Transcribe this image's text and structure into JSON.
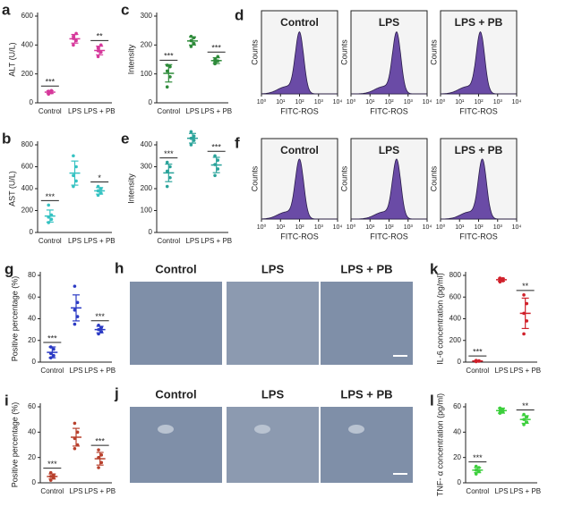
{
  "chart_data": [
    {
      "type": "dotplot",
      "panel": "a",
      "ylabel": "ALT (U/L)",
      "categories": [
        "Control",
        "LPS",
        "LPS + PB"
      ],
      "ylim": [
        0,
        600
      ],
      "yticks": [
        0,
        200,
        400,
        600
      ],
      "color": "#d6399b",
      "points": [
        [
          60,
          70,
          80,
          85,
          75
        ],
        [
          400,
          430,
          460,
          480,
          445
        ],
        [
          320,
          350,
          380,
          400,
          360
        ]
      ],
      "means": [
        74,
        443,
        362
      ],
      "errors": [
        10,
        30,
        30
      ],
      "annotations": [
        "***",
        null,
        "**"
      ]
    },
    {
      "type": "dotplot",
      "panel": "c",
      "ylabel": "Intensity",
      "categories": [
        "Control",
        "LPS",
        "LPS + PB"
      ],
      "ylim": [
        0,
        300
      ],
      "yticks": [
        0,
        100,
        200,
        300
      ],
      "color": "#2e8b3a",
      "points": [
        [
          55,
          90,
          110,
          125,
          130
        ],
        [
          195,
          205,
          215,
          225,
          230
        ],
        [
          135,
          145,
          150,
          160,
          140
        ]
      ],
      "means": [
        102,
        214,
        146
      ],
      "errors": [
        30,
        14,
        10
      ],
      "annotations": [
        "***",
        null,
        "***"
      ]
    },
    {
      "type": "dotplot",
      "panel": "b",
      "ylabel": "AST (U/L)",
      "categories": [
        "Control",
        "LPS",
        "LPS + PB"
      ],
      "ylim": [
        0,
        800
      ],
      "yticks": [
        0,
        200,
        400,
        600,
        800
      ],
      "color": "#35c2c2",
      "points": [
        [
          90,
          120,
          140,
          160,
          250
        ],
        [
          420,
          470,
          520,
          600,
          700
        ],
        [
          340,
          360,
          380,
          400,
          420
        ]
      ],
      "means": [
        150,
        542,
        380
      ],
      "errors": [
        55,
        110,
        30
      ],
      "annotations": [
        "***",
        null,
        "*"
      ]
    },
    {
      "type": "dotplot",
      "panel": "e",
      "ylabel": "Intensity",
      "categories": [
        "Control",
        "LPS",
        "LPS + PB"
      ],
      "ylim": [
        0,
        400
      ],
      "yticks": [
        0,
        100,
        200,
        300,
        400
      ],
      "color": "#2aa39a",
      "points": [
        [
          210,
          250,
          280,
          300,
          320
        ],
        [
          400,
          420,
          430,
          440,
          460
        ],
        [
          260,
          290,
          310,
          330,
          350
        ]
      ],
      "means": [
        272,
        430,
        308
      ],
      "errors": [
        40,
        22,
        35
      ],
      "annotations": [
        "***",
        null,
        "***"
      ]
    },
    {
      "type": "flow",
      "panel": "d",
      "xlabel": "FITC-ROS",
      "ylabel": "Counts",
      "xlim": [
        0,
        4
      ],
      "xticks": [
        {
          "value": 0,
          "label": "10⁰"
        },
        {
          "value": 1,
          "label": "10¹"
        },
        {
          "value": 2,
          "label": "10²"
        },
        {
          "value": 3,
          "label": "10³"
        },
        {
          "value": 4,
          "label": "10⁴"
        }
      ],
      "plots": [
        {
          "title": "Control",
          "peak": 2.0
        },
        {
          "title": "LPS",
          "peak": 2.4
        },
        {
          "title": "LPS + PB",
          "peak": 2.1
        }
      ]
    },
    {
      "type": "flow",
      "panel": "f",
      "xlabel": "FITC-ROS",
      "ylabel": "Counts",
      "xlim": [
        0,
        4
      ],
      "xticks": [
        {
          "value": 0,
          "label": "10⁰"
        },
        {
          "value": 1,
          "label": "10¹"
        },
        {
          "value": 2,
          "label": "10²"
        },
        {
          "value": 3,
          "label": "10³"
        },
        {
          "value": 4,
          "label": "10⁴"
        }
      ],
      "plots": [
        {
          "title": "Control",
          "peak": 2.0
        },
        {
          "title": "LPS",
          "peak": 2.4
        },
        {
          "title": "LPS + PB",
          "peak": 2.2
        }
      ]
    },
    {
      "type": "dotplot",
      "panel": "g",
      "ylabel": "Positive percentage (%)",
      "categories": [
        "Control",
        "LPS",
        "LPS + PB"
      ],
      "ylim": [
        0,
        80
      ],
      "yticks": [
        0,
        20,
        40,
        60,
        80
      ],
      "color": "#2b3ac4",
      "points": [
        [
          4,
          6,
          8,
          12,
          14
        ],
        [
          35,
          42,
          48,
          55,
          70
        ],
        [
          26,
          28,
          30,
          32,
          34
        ]
      ],
      "means": [
        9,
        50,
        30
      ],
      "errors": [
        5,
        12,
        3
      ],
      "annotations": [
        "***",
        null,
        "***"
      ]
    },
    {
      "type": "image",
      "panel": "h",
      "titles": [
        "Control",
        "LPS",
        "LPS + PB"
      ]
    },
    {
      "type": "dotplot",
      "panel": "k",
      "ylabel": "IL-6 concentration (pg/ml)",
      "categories": [
        "Control",
        "LPS",
        "LPS + PB"
      ],
      "ylim": [
        0,
        800
      ],
      "yticks": [
        0,
        200,
        400,
        600,
        800
      ],
      "color": "#d0202a",
      "points": [
        [
          5,
          8,
          10,
          12,
          15
        ],
        [
          740,
          750,
          760,
          770,
          775
        ],
        [
          260,
          380,
          450,
          540,
          620
        ]
      ],
      "means": [
        10,
        760,
        450
      ],
      "errors": [
        4,
        14,
        140
      ],
      "annotations": [
        "***",
        null,
        "**"
      ]
    },
    {
      "type": "dotplot",
      "panel": "i",
      "ylabel": "Positive percentage (%)",
      "categories": [
        "Control",
        "LPS",
        "LPS + PB"
      ],
      "ylim": [
        0,
        60
      ],
      "yticks": [
        0,
        20,
        40,
        60
      ],
      "color": "#b8402c",
      "points": [
        [
          2,
          4,
          5,
          6,
          8
        ],
        [
          27,
          30,
          35,
          40,
          47
        ],
        [
          12,
          16,
          20,
          22,
          26
        ]
      ],
      "means": [
        5,
        36,
        19
      ],
      "errors": [
        2,
        7,
        5
      ],
      "annotations": [
        "***",
        null,
        "***"
      ]
    },
    {
      "type": "image",
      "panel": "j",
      "titles": [
        "Control",
        "LPS",
        "LPS + PB"
      ]
    },
    {
      "type": "dotplot",
      "panel": "l",
      "ylabel": "TNF- α concentration (pg/ml)",
      "categories": [
        "Control",
        "LPS",
        "LPS + PB"
      ],
      "ylim": [
        0,
        60
      ],
      "yticks": [
        0,
        20,
        40,
        60
      ],
      "color": "#3ccf3c",
      "points": [
        [
          7,
          9,
          10,
          12,
          13
        ],
        [
          55,
          56,
          57,
          58,
          59
        ],
        [
          46,
          48,
          50,
          52,
          54
        ]
      ],
      "means": [
        10,
        57,
        50
      ],
      "errors": [
        2,
        2,
        3
      ],
      "annotations": [
        "***",
        null,
        "**"
      ]
    }
  ]
}
